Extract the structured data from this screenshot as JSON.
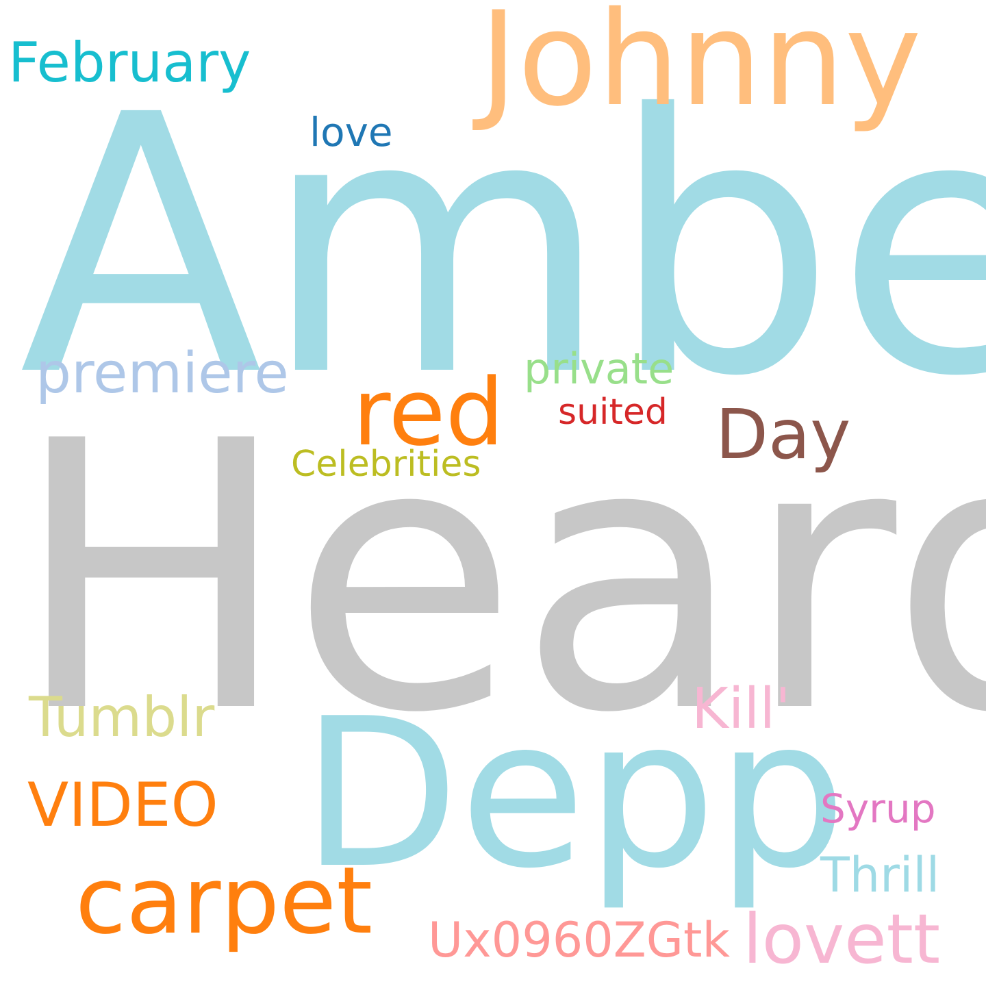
{
  "background": "#ffffff",
  "words": {
    "amber": {
      "text": "Amber",
      "color": "#a1dbe5"
    },
    "heard": {
      "text": "Heard",
      "color": "#c7c7c7"
    },
    "johnny": {
      "text": "Johnny",
      "color": "#ffbe7d"
    },
    "depp": {
      "text": "Depp",
      "color": "#a1dbe5"
    },
    "february": {
      "text": "February",
      "color": "#17becf"
    },
    "love": {
      "text": "love",
      "color": "#1f77b4"
    },
    "premiere": {
      "text": "premiere",
      "color": "#aec7e8"
    },
    "red": {
      "text": "red",
      "color": "#ff7f0e"
    },
    "private": {
      "text": "private",
      "color": "#98df8a"
    },
    "suited": {
      "text": "suited",
      "color": "#d62728"
    },
    "day": {
      "text": "Day",
      "color": "#8c564b"
    },
    "celebrities": {
      "text": "Celebrities",
      "color": "#bcbd22"
    },
    "kill": {
      "text": "Kill'",
      "color": "#f7b6d2"
    },
    "tumblr": {
      "text": "Tumblr",
      "color": "#dbdb8d"
    },
    "video": {
      "text": "VIDEO",
      "color": "#ff7f0e"
    },
    "syrup": {
      "text": "Syrup",
      "color": "#e377c2"
    },
    "carpet": {
      "text": "carpet",
      "color": "#ff7f0e"
    },
    "thrill": {
      "text": "Thrill",
      "color": "#9edae5"
    },
    "code": {
      "text": "Ux0960ZGtk",
      "color": "#ff9896"
    },
    "lovett": {
      "text": "lovett",
      "color": "#f7b6d2"
    }
  }
}
